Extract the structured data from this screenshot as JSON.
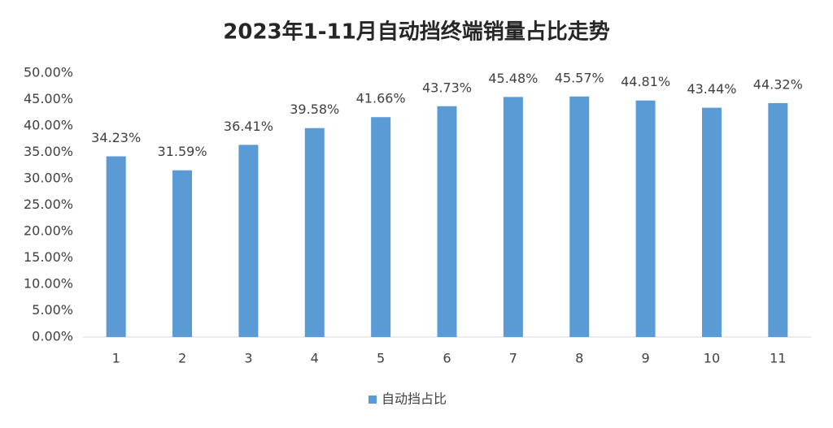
{
  "chart_data": {
    "type": "bar",
    "title": "2023年1-11月自动挡终端销量占比走势",
    "categories": [
      "1",
      "2",
      "3",
      "4",
      "5",
      "6",
      "7",
      "8",
      "9",
      "10",
      "11"
    ],
    "series": [
      {
        "name": "自动挡占比",
        "color": "#5b9bd5",
        "values": [
          34.23,
          31.59,
          36.41,
          39.58,
          41.66,
          43.73,
          45.48,
          45.57,
          44.81,
          43.44,
          44.32
        ],
        "value_labels": [
          "34.23%",
          "31.59%",
          "36.41%",
          "39.58%",
          "41.66%",
          "43.73%",
          "45.48%",
          "45.57%",
          "44.81%",
          "43.44%",
          "44.32%"
        ]
      }
    ],
    "ylim": [
      0,
      50
    ],
    "yticks": [
      {
        "value": 0,
        "label": "0.00%"
      },
      {
        "value": 5,
        "label": "5.00%"
      },
      {
        "value": 10,
        "label": "10.00%"
      },
      {
        "value": 15,
        "label": "15.00%"
      },
      {
        "value": 20,
        "label": "20.00%"
      },
      {
        "value": 25,
        "label": "25.00%"
      },
      {
        "value": 30,
        "label": "30.00%"
      },
      {
        "value": 35,
        "label": "35.00%"
      },
      {
        "value": 40,
        "label": "40.00%"
      },
      {
        "value": 45,
        "label": "45.00%"
      },
      {
        "value": 50,
        "label": "50.00%"
      }
    ],
    "grid": false,
    "legend": "bottom"
  }
}
